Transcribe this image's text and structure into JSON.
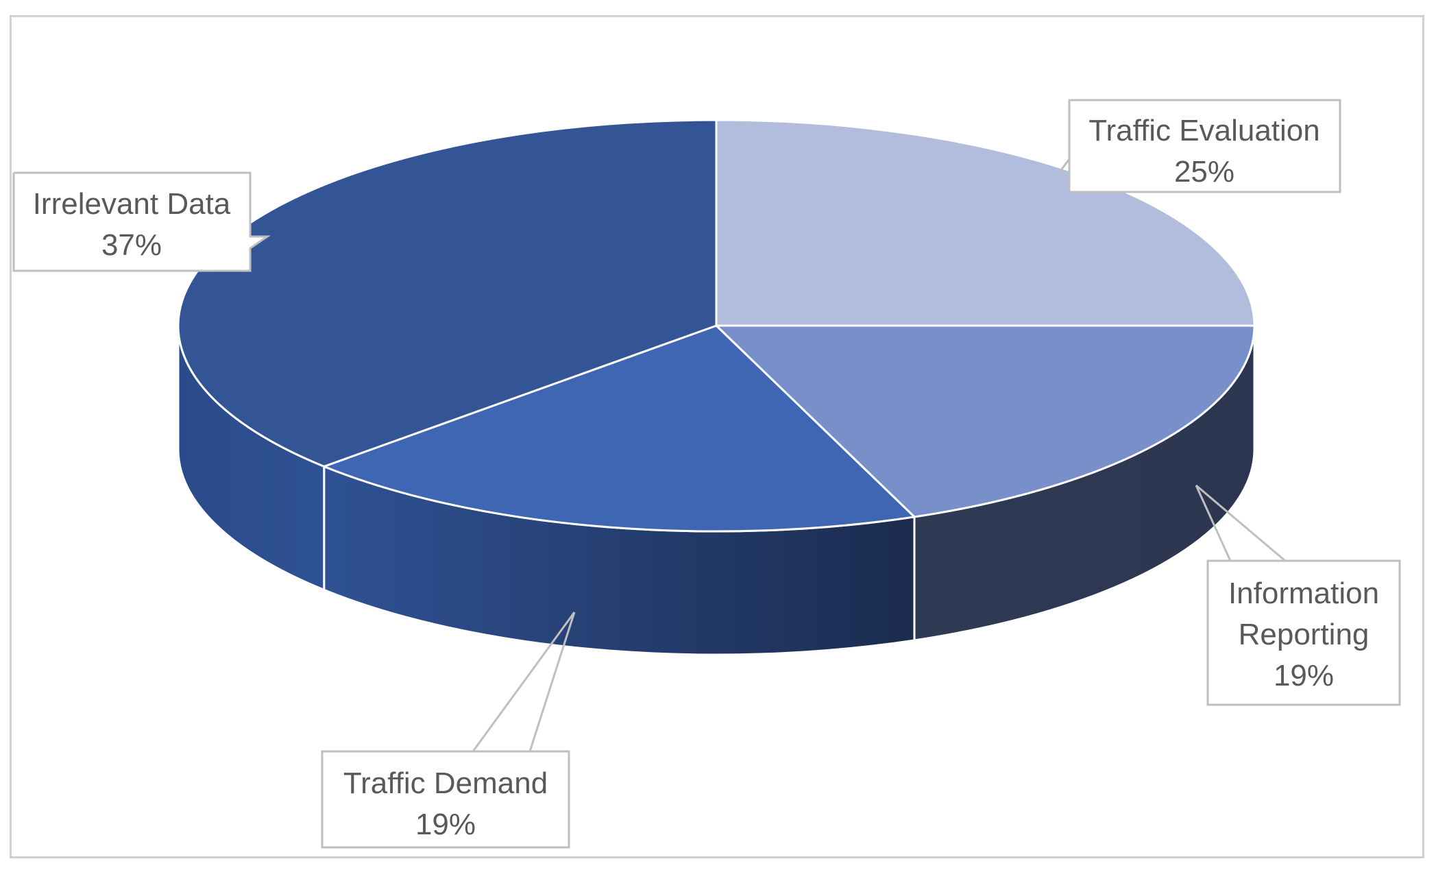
{
  "chart_data": {
    "type": "pie",
    "title": "",
    "slices": [
      {
        "label": "Traffic Evaluation",
        "value": 25,
        "pct_label": "25%",
        "color": "#b2bcdc",
        "side_color": "#8f9ac0"
      },
      {
        "label": "Information Reporting",
        "label_lines": [
          "Information",
          "Reporting"
        ],
        "value": 19,
        "pct_label": "19%",
        "color": "#788fca",
        "side_color": "#2f3a54"
      },
      {
        "label": "Traffic Demand",
        "value": 19,
        "pct_label": "19%",
        "color": "#3e66b3",
        "side_color": "#233d6e"
      },
      {
        "label": "Irrelevant Data",
        "value": 37,
        "pct_label": "37%",
        "color": "#345595",
        "side_color": "#2a4a86"
      }
    ],
    "legend": "none",
    "data_labels": "callouts with category name and percentage"
  }
}
